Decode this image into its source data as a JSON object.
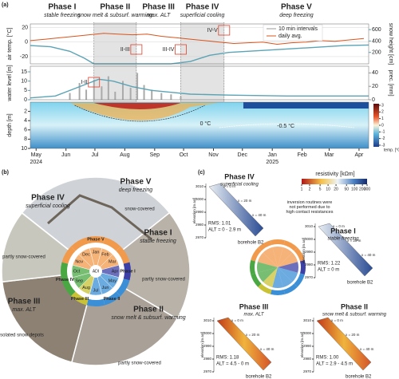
{
  "panel_a": {
    "label": "(a)",
    "phases": [
      {
        "name": "Phase I",
        "desc": "stable freezing",
        "x": -6
      },
      {
        "name": "Phase II",
        "desc": "snow melt & subsurf. warming",
        "x": 60
      },
      {
        "name": "Phase III",
        "desc": "max. ALT",
        "x": 104
      },
      {
        "name": "Phase IV",
        "desc": "superficial cooling",
        "x": 150
      },
      {
        "name": "Phase V",
        "desc": "deep freezing",
        "x": 195
      }
    ],
    "xlim": [
      -6,
      345
    ],
    "xticks": [
      {
        "value": 0,
        "label": "May"
      },
      {
        "value": 31,
        "label": "Jun"
      },
      {
        "value": 61,
        "label": "Jul"
      },
      {
        "value": 92,
        "label": "Aug"
      },
      {
        "value": 123,
        "label": "Sep"
      },
      {
        "value": 153,
        "label": "Oct"
      },
      {
        "value": 184,
        "label": "Nov"
      },
      {
        "value": 214,
        "label": "Dec"
      },
      {
        "value": 245,
        "label": "Jan"
      },
      {
        "value": 276,
        "label": "Feb"
      },
      {
        "value": 304,
        "label": "Mar"
      },
      {
        "value": 335,
        "label": "Apr"
      }
    ],
    "years": [
      {
        "value": 0,
        "label": "2024"
      },
      {
        "value": 245,
        "label": "2025"
      }
    ],
    "transitions": [
      "I-II",
      "II-III",
      "III-IV",
      "IV-V"
    ],
    "legend": [
      "10 min intervals",
      "daily avg."
    ],
    "air_temp": {
      "axis_label": "air temp. [°C]",
      "color": "#d9541e",
      "ylim": [
        -30,
        25
      ],
      "yticks": [
        -20,
        0,
        20
      ],
      "x": [
        -6,
        10,
        25,
        40,
        55,
        70,
        85,
        100,
        115,
        130,
        145,
        160,
        175,
        190,
        205,
        220,
        235,
        250,
        265,
        280,
        295,
        310,
        325,
        340
      ],
      "values": [
        2,
        4,
        6,
        8,
        10,
        12,
        11,
        10,
        11,
        8,
        6,
        4,
        2,
        0,
        -2,
        -1,
        0,
        -3,
        -1,
        0,
        2,
        1,
        3,
        5
      ]
    },
    "snow_height": {
      "axis_label": "snow height [cm]",
      "color": "#5ba3b5",
      "ylim": [
        0,
        700
      ],
      "yticks": [
        200,
        400,
        600
      ],
      "x": [
        -6,
        15,
        35,
        50,
        60,
        140,
        160,
        180,
        200,
        230,
        260,
        290,
        320,
        345
      ],
      "values": [
        320,
        300,
        220,
        100,
        0,
        0,
        40,
        150,
        200,
        230,
        260,
        290,
        320,
        330
      ]
    },
    "water_level": {
      "axis_label": "water level [m]",
      "color": "#5ba3b5",
      "ylim": [
        0,
        18
      ],
      "yticks": [
        0,
        5,
        10,
        15
      ],
      "x": [
        -6,
        20,
        40,
        55,
        65,
        80,
        100,
        120,
        140,
        160,
        200,
        260,
        345
      ],
      "values": [
        1,
        2,
        6,
        9,
        11,
        10,
        7,
        5,
        4,
        3,
        2.5,
        2,
        2
      ]
    },
    "precipitation": {
      "axis_label": "prec. [mm]",
      "color": "#aaaaaa",
      "ylim": [
        0,
        50
      ],
      "yticks": [
        0,
        20,
        40
      ],
      "x": [
        35,
        45,
        52,
        60,
        68,
        75,
        82,
        90,
        98,
        105,
        112,
        120,
        130,
        140,
        150
      ],
      "values": [
        10,
        25,
        15,
        30,
        20,
        35,
        12,
        28,
        18,
        40,
        22,
        15,
        10,
        8,
        5
      ]
    },
    "depth": {
      "axis_label": "depth [m]",
      "ylim": [
        0,
        10
      ],
      "yticks": [
        2,
        4,
        6,
        8,
        10
      ],
      "contours": [
        "0 °C",
        "-0.5 °C"
      ]
    },
    "colorbar": {
      "label": "temp. [°C]",
      "ticks": [
        3,
        2,
        1,
        0,
        -1,
        -2,
        -3
      ]
    }
  },
  "panel_b": {
    "label": "(b)",
    "center": "ADI",
    "months": [
      "Jan",
      "Feb",
      "Mar",
      "Apr",
      "May",
      "Jun",
      "Jul",
      "Aug",
      "Sep",
      "Oct",
      "Nov",
      "Dec"
    ],
    "ring": [
      {
        "name": "Phase V",
        "color": "#f29a4c",
        "months": [
          "Nov",
          "Dec",
          "Jan",
          "Feb",
          "Mar"
        ]
      },
      {
        "name": "Phase I",
        "color": "#3b3fa6",
        "months": [
          "Apr"
        ]
      },
      {
        "name": "Phase II",
        "color": "#3a8fd6",
        "months": [
          "May",
          "Jun",
          "Jul"
        ]
      },
      {
        "name": "Phase III",
        "color": "#c9c235",
        "months": [
          "Aug"
        ]
      },
      {
        "name": "Phase IV",
        "color": "#4aa843",
        "months": [
          "Sep",
          "Oct"
        ]
      }
    ],
    "phases": [
      {
        "name": "Phase V",
        "desc": "deep freezing",
        "note": "snow-covered"
      },
      {
        "name": "Phase IV",
        "desc": "superficial cooling",
        "note": "partly snow-covered"
      },
      {
        "name": "Phase I",
        "desc": "stable freezing",
        "note": "partly snow-covered"
      },
      {
        "name": "Phase III",
        "desc": "max. ALT",
        "note": "snow-free, isolated snow depots"
      },
      {
        "name": "Phase II",
        "desc": "snow melt & subsurf. warming",
        "note": "partly snow-covered"
      }
    ]
  },
  "panel_c": {
    "label": "(c)",
    "colorbar_label": "resistivity [kΩm]",
    "colorbar_ticks": [
      1,
      2,
      5,
      10,
      20,
      50,
      100,
      200,
      300
    ],
    "note": "inversion routines were not performed due to high contact resistances",
    "elevation_label": "elevation [m asl]",
    "elevation_ticks": [
      2970,
      2980,
      2990,
      3000,
      3010
    ],
    "electrodes": [
      "x = 0 m",
      "x = 20 m",
      "x = 40 m"
    ],
    "sections": [
      {
        "name": "Phase IV",
        "desc": "superficial cooling",
        "rms": "RMS: 1.01",
        "alt": "ALT = 0 - 2.9 m",
        "borehole": "borehole B2"
      },
      {
        "name": "Phase I",
        "desc": "stable freezing",
        "rms": "RMS: 1.22",
        "alt": "ALT = 0 m",
        "borehole": "borehole B2"
      },
      {
        "name": "Phase III",
        "desc": "max. ALT",
        "rms": "RMS: 1.18",
        "alt": "ALT = 4.5 - 0 m",
        "borehole": "borehole B2"
      },
      {
        "name": "Phase II",
        "desc": "snow melt & subsurf. warming",
        "rms": "RMS: 1.00",
        "alt": "ALT = 2.9 - 4.5 m",
        "borehole": "borehole B2"
      }
    ]
  }
}
